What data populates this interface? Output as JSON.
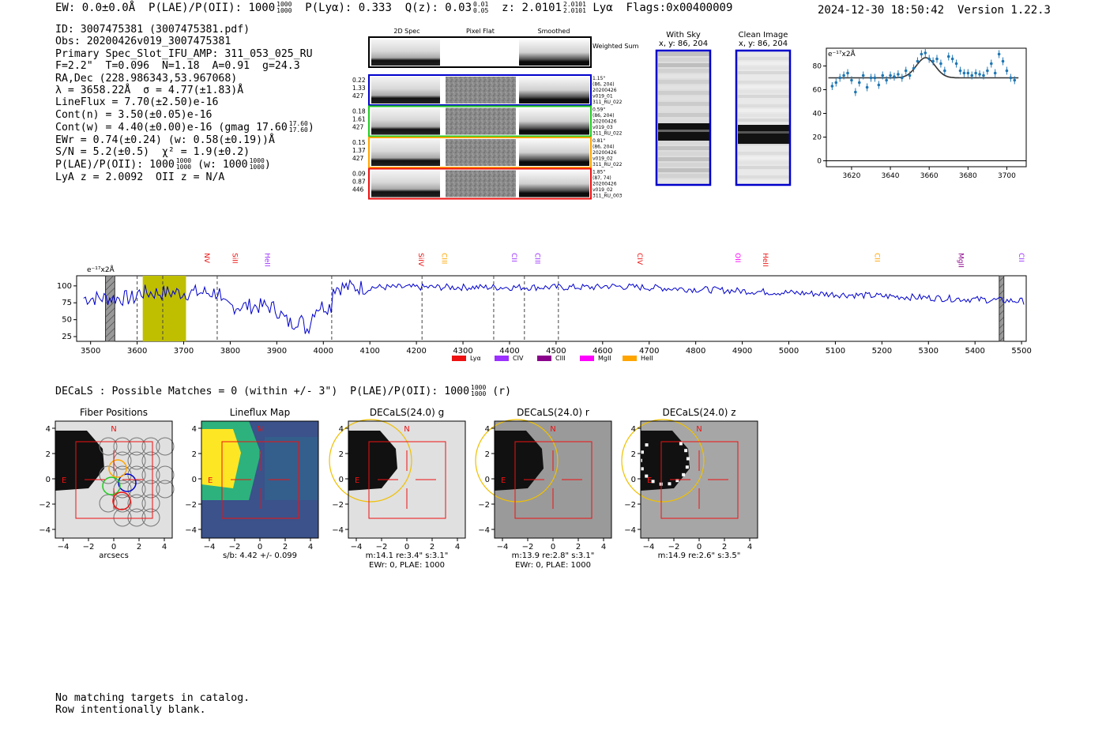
{
  "header": {
    "ew": "EW: 0.0±0.0Å",
    "plae_label": "P(LAE)/P(OII): 1000",
    "plae_sup": "1000",
    "plae_sub": "1000",
    "plya": "P(Lyα): 0.333",
    "qz_label": "Q(z): 0.03",
    "qz_sup": "0.01",
    "qz_sub": "0.05",
    "z_label": "z: 2.0101",
    "z_sup": "2.0101",
    "z_sub": "2.0101",
    "z_line": "Lyα",
    "flags": "Flags:0x00400009",
    "timestamp": "2024-12-30 18:50:42",
    "version": "Version 1.22.3"
  },
  "info": {
    "id": "ID: 3007475381 (3007475381.pdf)",
    "obs": "Obs: 20200426v019_3007475381",
    "primary": "Primary Spec_Slot_IFU_AMP: 311_053_025_RU",
    "params": "F=2.2\"  T=0.096  N=1.18  A=0.91  g=24.3",
    "radec": "RA,Dec (228.986343,53.967068)",
    "lambda": "λ = 3658.22Å  σ = 4.77(±1.83)Å",
    "lineflux": "LineFlux = 7.70(±2.50)e-16",
    "contn": "Cont(n) = 3.50(±0.05)e-16",
    "contw": "Cont(w) = 4.40(±0.00)e-16 (gmag 17.60",
    "contw_sup": "17.60",
    "contw_sub": "17.60",
    "contw_end": ")",
    "ewr": "EWr = 0.74(±0.24) (w: 0.58(±0.19))Å",
    "sn": "S/N = 5.2(±0.5)  χ² = 1.9(±0.2)",
    "plae": "P(LAE)/P(OII): 1000",
    "plae_sup": "1000",
    "plae_sub": "1000",
    "plae_w": "(w: 1000",
    "plae_w_sup": "1000",
    "plae_w_sub": "1000",
    "plae_w_end": ")",
    "lyaz": "LyA z = 2.0092  OII z = N/A"
  },
  "cutouts": {
    "col_headers": [
      "2D Spec",
      "Pixel Flat",
      "Smoothed"
    ],
    "weighted_label": "Weighted Sum",
    "rows": [
      {
        "color": "#0000cc",
        "left": [
          "0.22",
          "1.33",
          "427"
        ],
        "right": [
          "1.15\"",
          "(86, 204)",
          "20200426",
          "v019_01",
          "311_RU_022"
        ]
      },
      {
        "color": "#22cc22",
        "left": [
          "0.18",
          "1.61",
          "427"
        ],
        "right": [
          "0.59\"",
          "(86, 204)",
          "20200426",
          "v019_03",
          "311_RU_022"
        ]
      },
      {
        "color": "#ffa500",
        "left": [
          "0.15",
          "1.37",
          "427"
        ],
        "right": [
          "0.81\"",
          "(86, 204)",
          "20200426",
          "v019_02",
          "311_RU_022"
        ]
      },
      {
        "color": "#ee1111",
        "left": [
          "0.09",
          "0.87",
          "446"
        ],
        "right": [
          "1.85\"",
          "(87, 74)",
          "20200426",
          "v019_02",
          "311_RU_003"
        ]
      }
    ],
    "with_sky_title": "With Sky",
    "with_sky_xy": "x, y: 86, 204",
    "clean_title": "Clean Image",
    "clean_xy": "x, y: 86, 204"
  },
  "fit_plot": {
    "unit_label": "e⁻¹⁷x2Å",
    "xticks": [
      "3620",
      "3640",
      "3660",
      "3680",
      "3700"
    ],
    "yticks": [
      "0",
      "20",
      "40",
      "60",
      "80"
    ],
    "xlim": [
      3607,
      3710
    ],
    "ylim": [
      -5,
      95
    ],
    "model": {
      "baseline": 70,
      "amp": 17,
      "center": 3658.2,
      "sigma": 4.77
    },
    "points": [
      [
        3610,
        63
      ],
      [
        3612,
        66
      ],
      [
        3614,
        70
      ],
      [
        3616,
        72
      ],
      [
        3618,
        74
      ],
      [
        3620,
        68
      ],
      [
        3622,
        58
      ],
      [
        3624,
        66
      ],
      [
        3626,
        72
      ],
      [
        3628,
        62
      ],
      [
        3630,
        70
      ],
      [
        3632,
        70
      ],
      [
        3634,
        64
      ],
      [
        3636,
        72
      ],
      [
        3638,
        68
      ],
      [
        3640,
        72
      ],
      [
        3642,
        71
      ],
      [
        3644,
        73
      ],
      [
        3646,
        70
      ],
      [
        3648,
        76
      ],
      [
        3650,
        72
      ],
      [
        3652,
        78
      ],
      [
        3654,
        84
      ],
      [
        3656,
        90
      ],
      [
        3658,
        91
      ],
      [
        3660,
        86
      ],
      [
        3662,
        84
      ],
      [
        3664,
        86
      ],
      [
        3666,
        82
      ],
      [
        3668,
        76
      ],
      [
        3670,
        88
      ],
      [
        3672,
        86
      ],
      [
        3674,
        82
      ],
      [
        3676,
        76
      ],
      [
        3678,
        74
      ],
      [
        3680,
        74
      ],
      [
        3682,
        72
      ],
      [
        3684,
        74
      ],
      [
        3686,
        73
      ],
      [
        3688,
        72
      ],
      [
        3690,
        76
      ],
      [
        3692,
        82
      ],
      [
        3694,
        74
      ],
      [
        3696,
        90
      ],
      [
        3698,
        84
      ],
      [
        3700,
        76
      ],
      [
        3702,
        70
      ],
      [
        3704,
        68
      ]
    ]
  },
  "spectrum": {
    "unit_label": "e⁻¹⁷x2Å",
    "xticks": [
      "3500",
      "3600",
      "3700",
      "3800",
      "3900",
      "4000",
      "4100",
      "4200",
      "4300",
      "4400",
      "4500",
      "4600",
      "4700",
      "4800",
      "4900",
      "5000",
      "5100",
      "5200",
      "5300",
      "5400",
      "5500"
    ],
    "yticks": [
      "25",
      "50",
      "75",
      "100"
    ],
    "xlim": [
      3470,
      5510
    ],
    "ylim": [
      18,
      115
    ],
    "line_labels": [
      {
        "name": "NV",
        "x": 3740,
        "color": "#ee1111"
      },
      {
        "name": "SiII",
        "x": 3800,
        "color": "#ee1111"
      },
      {
        "name": "HeII",
        "x": 3870,
        "color": "#9b30ff"
      },
      {
        "name": "SiIV",
        "x": 4200,
        "color": "#ee1111"
      },
      {
        "name": "CIII",
        "x": 4250,
        "color": "#ffa500"
      },
      {
        "name": "CII",
        "x": 4400,
        "color": "#9b30ff"
      },
      {
        "name": "CIII",
        "x": 4450,
        "color": "#9b30ff"
      },
      {
        "name": "CIV",
        "x": 4670,
        "color": "#ee1111"
      },
      {
        "name": "OII",
        "x": 4880,
        "color": "#ff00ff"
      },
      {
        "name": "HeII",
        "x": 4940,
        "color": "#ee1111"
      },
      {
        "name": "CII",
        "x": 5180,
        "color": "#ffa500"
      },
      {
        "name": "MgII",
        "x": 5360,
        "color": "#8b008b"
      },
      {
        "name": "CII",
        "x": 5490,
        "color": "#9b30ff"
      }
    ],
    "dashed_lines": [
      3600,
      3655,
      3772,
      4018,
      4212,
      4366,
      4432,
      4505
    ],
    "legend": [
      {
        "name": "Lyα",
        "color": "#ee1111"
      },
      {
        "name": "CIV",
        "color": "#9b30ff"
      },
      {
        "name": "CIII",
        "color": "#8b008b"
      },
      {
        "name": "MgII",
        "color": "#ff00ff"
      },
      {
        "name": "HeII",
        "color": "#ffa500"
      }
    ]
  },
  "decals": {
    "summary": "DECaLS : Possible Matches = 0 (within +/- 3\")  P(LAE)/P(OII): 1000",
    "summary_sup": "1000",
    "summary_sub": "1000",
    "summary_end": "(r)",
    "panels": [
      {
        "title": "Fiber Positions",
        "caption1": "arcsecs",
        "caption2": ""
      },
      {
        "title": "Lineflux Map",
        "caption1": "s/b: 4.42 +/- 0.099",
        "caption2": ""
      },
      {
        "title": "DECaLS(24.0) g",
        "caption1": "m:14.1  re:3.4\"  s:3.1\"",
        "caption2": "EWr: 0, PLAE: 1000"
      },
      {
        "title": "DECaLS(24.0) r",
        "caption1": "m:13.9  re:2.8\"  s:3.1\"",
        "caption2": "EWr: 0, PLAE: 1000"
      },
      {
        "title": "DECaLS(24.0) z",
        "caption1": "m:14.9  re:2.6\"  s:3.5\"",
        "caption2": ""
      }
    ],
    "ticks": [
      "−4",
      "−2",
      "0",
      "2",
      "4"
    ],
    "north": "N",
    "east": "E"
  },
  "footer": {
    "line1": "No matching targets in catalog.",
    "line2": "Row intentionally blank."
  }
}
